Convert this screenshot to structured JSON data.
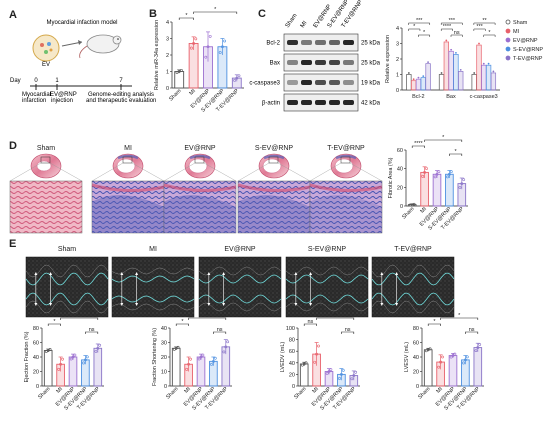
{
  "panels": {
    "A": {
      "letter": "A",
      "model_label": "Myocardial infaction model",
      "ev_label": "EV",
      "timeline": {
        "day_label": "Day",
        "days": [
          "0",
          "1",
          "7"
        ],
        "events": [
          "Myocardial\ninfarction",
          "EV@RNP\ninjection",
          "Genome-editing analysis\nand therapeutic evaluation"
        ]
      }
    },
    "B": {
      "letter": "B",
      "ylabel": "Relative miR-34a expression",
      "categories": [
        "Sham",
        "MI",
        "EV@RNP",
        "S-EV@RNP",
        "T-EV@RNP"
      ],
      "sig_marks": [
        "*",
        "*"
      ]
    },
    "C": {
      "letter": "C",
      "lanes": [
        "Sham",
        "MI",
        "EV@RNP",
        "S-EV@RNP",
        "T-EV@RNP"
      ],
      "bands": [
        {
          "name": "Bcl-2",
          "kda": "25 kDa"
        },
        {
          "name": "Bax",
          "kda": "25 kDa"
        },
        {
          "name": "c-caspase3",
          "kda": "19 kDa"
        },
        {
          "name": "β-actin",
          "kda": "42 kDa"
        }
      ],
      "ylabel": "Relative expression",
      "groups": [
        "Bcl-2",
        "Bax",
        "c-caspase3"
      ],
      "legend": [
        "Sham",
        "MI",
        "EV@RNP",
        "S-EV@RNP",
        "T-EV@RNP"
      ],
      "sig_marks": [
        "***",
        "***",
        "**",
        "*",
        "****",
        "***",
        "*",
        "ns",
        "*"
      ]
    },
    "D": {
      "letter": "D",
      "groups": [
        "Sham",
        "MI",
        "EV@RNP",
        "S-EV@RNP",
        "T-EV@RNP"
      ],
      "ylabel": "Fibrotic Area (%)",
      "sig_marks": [
        "****",
        "*",
        "*"
      ]
    },
    "E": {
      "letter": "E",
      "groups": [
        "Sham",
        "MI",
        "EV@RNP",
        "S-EV@RNP",
        "T-EV@RNP"
      ],
      "sub_charts": [
        {
          "ylabel": "Ejection Fraction (%)",
          "sig_marks": [
            "*",
            "*",
            "ns"
          ]
        },
        {
          "ylabel": "Fraction Shortening (%)",
          "sig_marks": [
            "*",
            "*",
            "ns"
          ]
        },
        {
          "ylabel": "LVEDV (mL)",
          "sig_marks": [
            "ns",
            "**",
            "ns"
          ]
        },
        {
          "ylabel": "LVESV (mL)",
          "sig_marks": [
            "*",
            "*",
            "ns"
          ]
        }
      ]
    }
  },
  "colors": {
    "sham": "#555555",
    "mi": "#e8606a",
    "ev": "#9b6fd0",
    "sev": "#4c8fe0",
    "tev": "#8a74c8",
    "band": "#1a1a1a",
    "tissue_red": "#d54a6a",
    "tissue_blue": "#5560b8"
  },
  "chart_data": [
    {
      "type": "bar",
      "panel": "B",
      "categories": [
        "Sham",
        "MI",
        "EV@RNP",
        "S-EV@RNP",
        "T-EV@RNP"
      ],
      "values": [
        1.0,
        2.7,
        2.5,
        2.5,
        0.6
      ],
      "errors": [
        0.1,
        0.4,
        0.9,
        0.5,
        0.2
      ],
      "ylim": [
        0,
        4
      ],
      "yticks": [
        0,
        1,
        2,
        3,
        4
      ],
      "ylabel": "Relative miR-34a expression"
    },
    {
      "type": "bar",
      "panel": "C",
      "categories": [
        "Bcl-2",
        "Bax",
        "c-caspase3"
      ],
      "series": [
        {
          "name": "Sham",
          "values": [
            1.0,
            1.0,
            1.0
          ]
        },
        {
          "name": "MI",
          "values": [
            0.6,
            3.1,
            2.9
          ]
        },
        {
          "name": "EV@RNP",
          "values": [
            0.7,
            2.5,
            1.6
          ]
        },
        {
          "name": "S-EV@RNP",
          "values": [
            0.8,
            2.3,
            1.6
          ]
        },
        {
          "name": "T-EV@RNP",
          "values": [
            1.7,
            1.2,
            1.1
          ]
        }
      ],
      "ylim": [
        0,
        4
      ],
      "yticks": [
        0,
        1,
        2,
        3,
        4
      ],
      "ylabel": "Relative expression",
      "legend": "right"
    },
    {
      "type": "bar",
      "panel": "D",
      "categories": [
        "Sham",
        "MI",
        "EV@RNP",
        "S-EV@RNP",
        "T-EV@RNP"
      ],
      "values": [
        1.5,
        36,
        34,
        34,
        24
      ],
      "errors": [
        0.5,
        6,
        4,
        4,
        6
      ],
      "ylim": [
        0,
        60
      ],
      "yticks": [
        0,
        20,
        40,
        60
      ],
      "ylabel": "Fibrotic Area (%)"
    },
    {
      "type": "bar",
      "panel": "E1",
      "categories": [
        "Sham",
        "MI",
        "EV@RNP",
        "S-EV@RNP",
        "T-EV@RNP"
      ],
      "values": [
        49,
        30,
        40,
        36,
        52
      ],
      "errors": [
        2,
        10,
        4,
        6,
        6
      ],
      "ylim": [
        0,
        80
      ],
      "yticks": [
        0,
        20,
        40,
        60,
        80
      ],
      "ylabel": "Ejection Fraction (%)"
    },
    {
      "type": "bar",
      "panel": "E2",
      "categories": [
        "Sham",
        "MI",
        "EV@RNP",
        "S-EV@RNP",
        "T-EV@RNP"
      ],
      "values": [
        26,
        15,
        20,
        17,
        27
      ],
      "errors": [
        1,
        5,
        2,
        3,
        5
      ],
      "ylim": [
        0,
        40
      ],
      "yticks": [
        0,
        10,
        20,
        30,
        40
      ],
      "ylabel": "Fraction Shortening (%)"
    },
    {
      "type": "bar",
      "panel": "E3",
      "categories": [
        "Sham",
        "MI",
        "EV@RNP",
        "S-EV@RNP",
        "T-EV@RNP"
      ],
      "values": [
        38,
        55,
        25,
        20,
        18
      ],
      "errors": [
        3,
        20,
        5,
        10,
        8
      ],
      "ylim": [
        0,
        100
      ],
      "yticks": [
        0,
        20,
        40,
        60,
        80,
        100
      ],
      "ylabel": "LVEDV (mL)"
    },
    {
      "type": "bar",
      "panel": "E4",
      "categories": [
        "Sham",
        "MI",
        "EV@RNP",
        "S-EV@RNP",
        "T-EV@RNP"
      ],
      "values": [
        50,
        33,
        42,
        36,
        53
      ],
      "errors": [
        2,
        10,
        3,
        6,
        6
      ],
      "ylim": [
        0,
        80
      ],
      "yticks": [
        0,
        20,
        40,
        60,
        80
      ],
      "ylabel": "LVESV (mL)"
    }
  ]
}
